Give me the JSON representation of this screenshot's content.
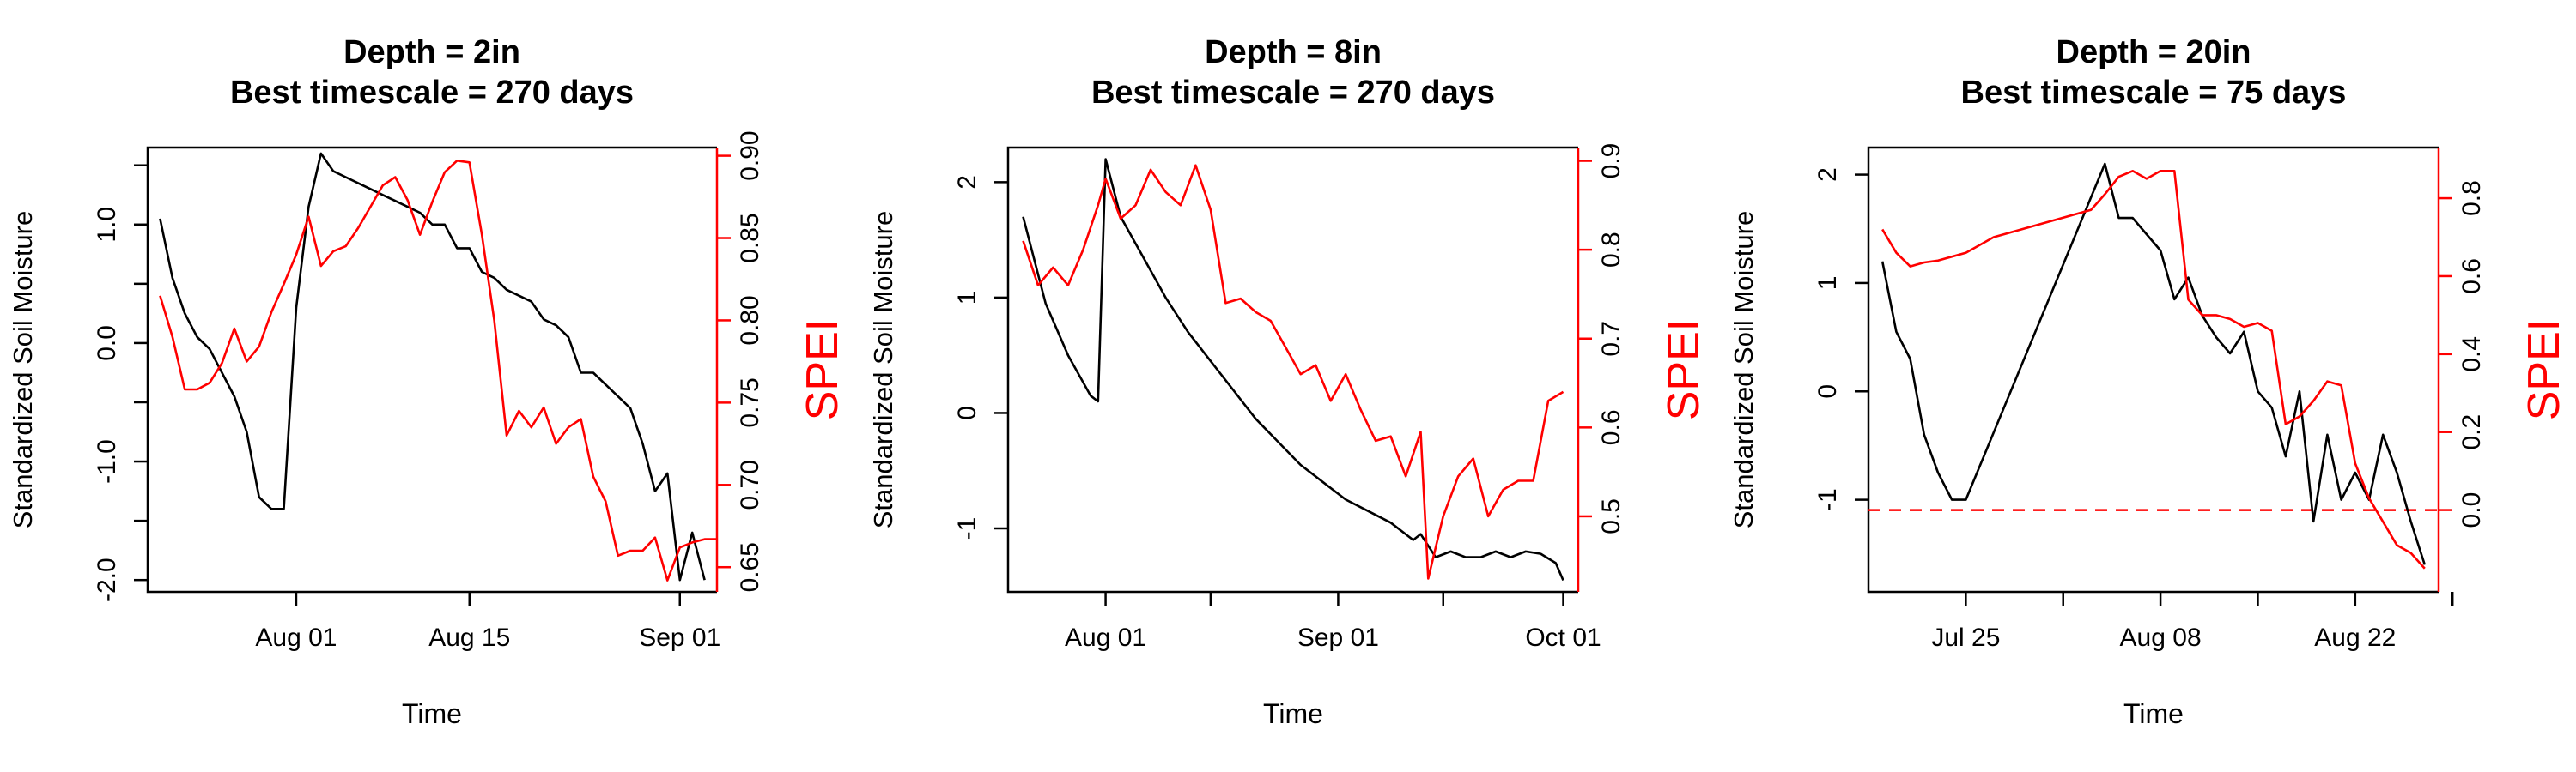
{
  "chart_data": [
    {
      "type": "line",
      "title": "Depth = 2in",
      "subtitle": "Best timescale = 270 days",
      "xlabel": "Time",
      "ylabel": "Standardized Soil Moisture",
      "y2label": "SPEI",
      "colors": {
        "soil_moisture": "#000000",
        "spei": "#ff0000"
      },
      "grid": false,
      "xlim": [
        "2017-07-20",
        "2017-09-04"
      ],
      "ylim": [
        -2.1,
        1.65
      ],
      "y2lim": [
        0.635,
        0.905
      ],
      "xticks": [
        {
          "date": "2017-08-01",
          "label": "Aug 01"
        },
        {
          "date": "2017-08-15",
          "label": "Aug 15"
        },
        {
          "date": "2017-09-01",
          "label": "Sep 01"
        }
      ],
      "yticks": [
        {
          "value": 1.0,
          "label": "1.0"
        },
        {
          "value": 0.0,
          "label": "0.0"
        },
        {
          "value": -1.0,
          "label": "-1.0"
        },
        {
          "value": -2.0,
          "label": "-2.0"
        }
      ],
      "yminor": [
        1.5,
        0.5,
        -0.5,
        -1.5
      ],
      "y2ticks": [
        {
          "value": 0.65,
          "label": "0.65"
        },
        {
          "value": 0.7,
          "label": "0.70"
        },
        {
          "value": 0.75,
          "label": "0.75"
        },
        {
          "value": 0.8,
          "label": "0.80"
        },
        {
          "value": 0.85,
          "label": "0.85"
        },
        {
          "value": 0.9,
          "label": "0.90"
        }
      ],
      "soil_moisture": {
        "x": [
          "2017-07-21",
          "2017-07-22",
          "2017-07-23",
          "2017-07-24",
          "2017-07-25",
          "2017-07-26",
          "2017-07-27",
          "2017-07-28",
          "2017-07-29",
          "2017-07-30",
          "2017-07-31",
          "2017-08-01",
          "2017-08-02",
          "2017-08-03",
          "2017-08-04",
          "2017-08-05",
          "2017-08-06",
          "2017-08-07",
          "2017-08-08",
          "2017-08-09",
          "2017-08-10",
          "2017-08-11",
          "2017-08-12",
          "2017-08-13",
          "2017-08-14",
          "2017-08-15",
          "2017-08-16",
          "2017-08-17",
          "2017-08-18",
          "2017-08-19",
          "2017-08-20",
          "2017-08-21",
          "2017-08-22",
          "2017-08-23",
          "2017-08-24",
          "2017-08-25",
          "2017-08-26",
          "2017-08-27",
          "2017-08-28",
          "2017-08-29",
          "2017-08-30",
          "2017-08-31",
          "2017-09-01",
          "2017-09-02",
          "2017-09-03"
        ],
        "y": [
          1.05,
          0.55,
          0.25,
          0.05,
          -0.05,
          -0.25,
          -0.45,
          -0.75,
          -1.3,
          -1.4,
          -1.4,
          0.3,
          1.15,
          1.6,
          1.45,
          1.4,
          1.35,
          1.3,
          1.25,
          1.2,
          1.15,
          1.1,
          1.0,
          1.0,
          0.8,
          0.8,
          0.6,
          0.55,
          0.45,
          0.4,
          0.35,
          0.2,
          0.15,
          0.05,
          -0.25,
          -0.25,
          -0.35,
          -0.45,
          -0.55,
          -0.85,
          -1.25,
          -1.1,
          -2.0,
          -1.6,
          -2.0
        ]
      },
      "spei": {
        "x": [
          "2017-07-21",
          "2017-07-22",
          "2017-07-23",
          "2017-07-24",
          "2017-07-25",
          "2017-07-26",
          "2017-07-27",
          "2017-07-28",
          "2017-07-29",
          "2017-07-30",
          "2017-07-31",
          "2017-08-01",
          "2017-08-02",
          "2017-08-03",
          "2017-08-04",
          "2017-08-05",
          "2017-08-06",
          "2017-08-07",
          "2017-08-08",
          "2017-08-09",
          "2017-08-10",
          "2017-08-11",
          "2017-08-12",
          "2017-08-13",
          "2017-08-14",
          "2017-08-15",
          "2017-08-16",
          "2017-08-17",
          "2017-08-18",
          "2017-08-19",
          "2017-08-20",
          "2017-08-21",
          "2017-08-22",
          "2017-08-23",
          "2017-08-24",
          "2017-08-25",
          "2017-08-26",
          "2017-08-27",
          "2017-08-28",
          "2017-08-29",
          "2017-08-30",
          "2017-08-31",
          "2017-09-01",
          "2017-09-02",
          "2017-09-03",
          "2017-09-04"
        ],
        "y": [
          0.815,
          0.79,
          0.758,
          0.758,
          0.762,
          0.774,
          0.795,
          0.775,
          0.784,
          0.805,
          0.822,
          0.84,
          0.863,
          0.833,
          0.842,
          0.845,
          0.856,
          0.869,
          0.882,
          0.887,
          0.873,
          0.852,
          0.872,
          0.89,
          0.897,
          0.896,
          0.852,
          0.8,
          0.73,
          0.745,
          0.735,
          0.747,
          0.725,
          0.735,
          0.74,
          0.705,
          0.69,
          0.657,
          0.66,
          0.66,
          0.668,
          0.642,
          0.662,
          0.665,
          0.667,
          0.667
        ]
      }
    },
    {
      "type": "line",
      "title": "Depth = 8in",
      "subtitle": "Best timescale = 270 days",
      "xlabel": "Time",
      "ylabel": "Standardized Soil Moisture",
      "y2label": "SPEI",
      "colors": {
        "soil_moisture": "#000000",
        "spei": "#ff0000"
      },
      "grid": false,
      "xlim": [
        "2017-07-19",
        "2017-10-03"
      ],
      "ylim": [
        -1.55,
        2.3
      ],
      "y2lim": [
        0.415,
        0.915
      ],
      "xticks": [
        {
          "date": "2017-08-01",
          "label": "Aug 01"
        },
        {
          "date": "2017-08-15",
          "label": ""
        },
        {
          "date": "2017-09-01",
          "label": "Sep 01"
        },
        {
          "date": "2017-09-15",
          "label": ""
        },
        {
          "date": "2017-10-01",
          "label": "Oct 01"
        }
      ],
      "yticks": [
        {
          "value": 2,
          "label": "2"
        },
        {
          "value": 1,
          "label": "1"
        },
        {
          "value": 0,
          "label": "0"
        },
        {
          "value": -1,
          "label": "-1"
        }
      ],
      "yminor": [],
      "y2ticks": [
        {
          "value": 0.5,
          "label": "0.5"
        },
        {
          "value": 0.6,
          "label": "0.6"
        },
        {
          "value": 0.7,
          "label": "0.7"
        },
        {
          "value": 0.8,
          "label": "0.8"
        },
        {
          "value": 0.9,
          "label": "0.9"
        }
      ],
      "soil_moisture": {
        "x": [
          "2017-07-21",
          "2017-07-24",
          "2017-07-27",
          "2017-07-30",
          "2017-07-31",
          "2017-08-01",
          "2017-08-03",
          "2017-08-06",
          "2017-08-09",
          "2017-08-12",
          "2017-08-15",
          "2017-08-18",
          "2017-08-21",
          "2017-08-24",
          "2017-08-27",
          "2017-08-30",
          "2017-09-02",
          "2017-09-05",
          "2017-09-08",
          "2017-09-11",
          "2017-09-12",
          "2017-09-14",
          "2017-09-16",
          "2017-09-18",
          "2017-09-20",
          "2017-09-22",
          "2017-09-24",
          "2017-09-26",
          "2017-09-28",
          "2017-09-30",
          "2017-10-01"
        ],
        "y": [
          1.7,
          0.95,
          0.5,
          0.15,
          0.1,
          2.2,
          1.7,
          1.35,
          1.0,
          0.7,
          0.45,
          0.2,
          -0.05,
          -0.25,
          -0.45,
          -0.6,
          -0.75,
          -0.85,
          -0.95,
          -1.1,
          -1.05,
          -1.25,
          -1.2,
          -1.25,
          -1.25,
          -1.2,
          -1.25,
          -1.2,
          -1.22,
          -1.3,
          -1.45
        ]
      },
      "spei": {
        "x": [
          "2017-07-21",
          "2017-07-23",
          "2017-07-25",
          "2017-07-27",
          "2017-07-29",
          "2017-07-31",
          "2017-08-01",
          "2017-08-03",
          "2017-08-05",
          "2017-08-07",
          "2017-08-09",
          "2017-08-11",
          "2017-08-13",
          "2017-08-15",
          "2017-08-17",
          "2017-08-19",
          "2017-08-21",
          "2017-08-23",
          "2017-08-25",
          "2017-08-27",
          "2017-08-29",
          "2017-08-31",
          "2017-09-02",
          "2017-09-04",
          "2017-09-06",
          "2017-09-08",
          "2017-09-10",
          "2017-09-12",
          "2017-09-13",
          "2017-09-15",
          "2017-09-17",
          "2017-09-19",
          "2017-09-21",
          "2017-09-23",
          "2017-09-25",
          "2017-09-27",
          "2017-09-29",
          "2017-10-01"
        ],
        "y": [
          0.81,
          0.76,
          0.78,
          0.76,
          0.8,
          0.85,
          0.88,
          0.835,
          0.85,
          0.89,
          0.865,
          0.85,
          0.895,
          0.845,
          0.74,
          0.745,
          0.73,
          0.72,
          0.69,
          0.66,
          0.67,
          0.63,
          0.66,
          0.62,
          0.585,
          0.59,
          0.545,
          0.595,
          0.43,
          0.5,
          0.545,
          0.565,
          0.5,
          0.53,
          0.54,
          0.54,
          0.63,
          0.64
        ]
      }
    },
    {
      "type": "line",
      "title": "Depth = 20in",
      "subtitle": "Best timescale = 75 days",
      "xlabel": "Time",
      "ylabel": "Standardized Soil Moisture",
      "y2label": "SPEI",
      "colors": {
        "soil_moisture": "#000000",
        "spei": "#ff0000",
        "reference": "#ff0000"
      },
      "grid": false,
      "reference_line": {
        "axis": "y2",
        "value": 0.0,
        "style": "dashed"
      },
      "xlim": [
        "2017-07-18",
        "2017-08-28"
      ],
      "ylim": [
        -1.85,
        2.25
      ],
      "y2lim": [
        -0.21,
        0.93
      ],
      "xticks": [
        {
          "date": "2017-07-25",
          "label": "Jul 25"
        },
        {
          "date": "2017-08-01",
          "label": ""
        },
        {
          "date": "2017-08-08",
          "label": "Aug 08"
        },
        {
          "date": "2017-08-15",
          "label": ""
        },
        {
          "date": "2017-08-22",
          "label": "Aug 22"
        },
        {
          "date": "2017-08-29",
          "label": ""
        }
      ],
      "yticks": [
        {
          "value": 2,
          "label": "2"
        },
        {
          "value": 1,
          "label": "1"
        },
        {
          "value": 0,
          "label": "0"
        },
        {
          "value": -1,
          "label": "-1"
        }
      ],
      "yminor": [],
      "y2ticks": [
        {
          "value": 0.0,
          "label": "0.0"
        },
        {
          "value": 0.2,
          "label": "0.2"
        },
        {
          "value": 0.4,
          "label": "0.4"
        },
        {
          "value": 0.6,
          "label": "0.6"
        },
        {
          "value": 0.8,
          "label": "0.8"
        }
      ],
      "soil_moisture": {
        "x": [
          "2017-07-19",
          "2017-07-20",
          "2017-07-21",
          "2017-07-22",
          "2017-07-23",
          "2017-07-24",
          "2017-07-25",
          "2017-08-04",
          "2017-08-05",
          "2017-08-06",
          "2017-08-07",
          "2017-08-08",
          "2017-08-09",
          "2017-08-10",
          "2017-08-11",
          "2017-08-12",
          "2017-08-13",
          "2017-08-14",
          "2017-08-15",
          "2017-08-16",
          "2017-08-17",
          "2017-08-18",
          "2017-08-19",
          "2017-08-20",
          "2017-08-21",
          "2017-08-22",
          "2017-08-23",
          "2017-08-24",
          "2017-08-25",
          "2017-08-26",
          "2017-08-27"
        ],
        "y": [
          1.2,
          0.55,
          0.3,
          -0.4,
          -0.75,
          -1.0,
          -1.0,
          2.1,
          1.6,
          1.6,
          1.45,
          1.3,
          0.85,
          1.05,
          0.7,
          0.5,
          0.35,
          0.55,
          0.0,
          -0.15,
          -0.6,
          0.0,
          -1.2,
          -0.4,
          -1.0,
          -0.75,
          -1.0,
          -0.4,
          -0.75,
          -1.2,
          -1.6
        ]
      },
      "spei": {
        "x": [
          "2017-07-19",
          "2017-07-20",
          "2017-07-21",
          "2017-07-22",
          "2017-07-23",
          "2017-07-25",
          "2017-07-27",
          "2017-08-03",
          "2017-08-04",
          "2017-08-05",
          "2017-08-06",
          "2017-08-07",
          "2017-08-08",
          "2017-08-09",
          "2017-08-10",
          "2017-08-11",
          "2017-08-12",
          "2017-08-13",
          "2017-08-14",
          "2017-08-15",
          "2017-08-16",
          "2017-08-17",
          "2017-08-18",
          "2017-08-19",
          "2017-08-20",
          "2017-08-21",
          "2017-08-22",
          "2017-08-23",
          "2017-08-24",
          "2017-08-25",
          "2017-08-26",
          "2017-08-27"
        ],
        "y": [
          0.72,
          0.66,
          0.625,
          0.635,
          0.64,
          0.66,
          0.7,
          0.77,
          0.81,
          0.855,
          0.87,
          0.85,
          0.87,
          0.87,
          0.54,
          0.5,
          0.5,
          0.49,
          0.47,
          0.48,
          0.46,
          0.22,
          0.24,
          0.28,
          0.33,
          0.32,
          0.12,
          0.03,
          -0.03,
          -0.09,
          -0.11,
          -0.15
        ]
      }
    }
  ]
}
